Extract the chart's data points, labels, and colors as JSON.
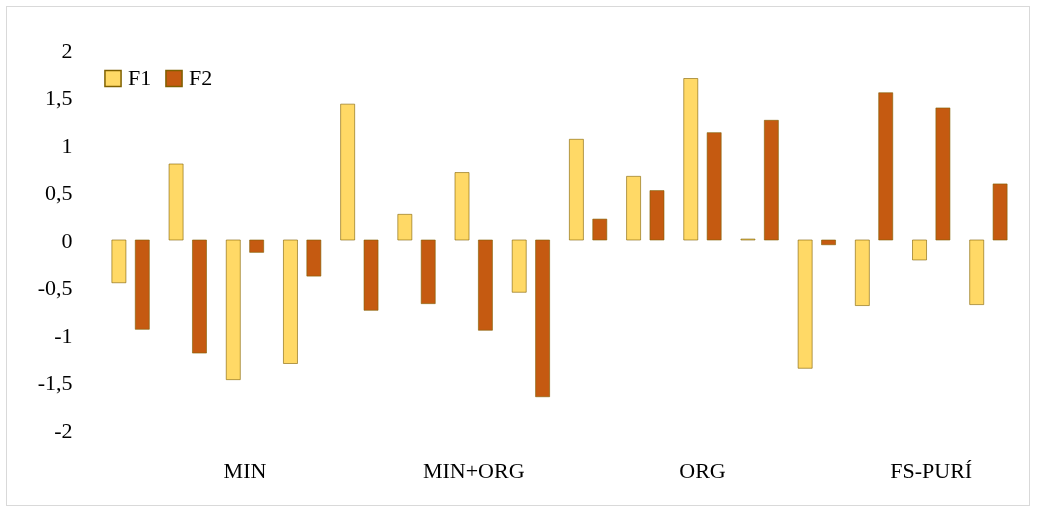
{
  "chart_data": {
    "type": "bar",
    "categories": [
      null,
      null,
      "MIN",
      null,
      null,
      null,
      "MIN+ORG",
      null,
      null,
      null,
      "ORG",
      null,
      null,
      null,
      "FS-PURÍ",
      null
    ],
    "series": [
      {
        "name": "F1",
        "color": "#ffd966",
        "values": [
          -0.45,
          0.8,
          -1.47,
          -1.3,
          1.43,
          0.27,
          0.71,
          -0.55,
          1.06,
          0.67,
          1.7,
          0.01,
          -1.35,
          -0.69,
          -0.21,
          -0.68
        ]
      },
      {
        "name": "F2",
        "color": "#c55a11",
        "values": [
          -0.94,
          -1.19,
          -0.13,
          -0.38,
          -0.74,
          -0.67,
          -0.95,
          -1.65,
          0.22,
          0.52,
          1.13,
          1.26,
          -0.05,
          1.55,
          1.39,
          0.59
        ]
      }
    ],
    "ylim": [
      -2,
      2
    ],
    "yticks": [
      {
        "value": -2,
        "label": "-2"
      },
      {
        "value": -1.5,
        "label": "-1,5"
      },
      {
        "value": -1,
        "label": "-1"
      },
      {
        "value": -0.5,
        "label": "-0,5"
      },
      {
        "value": 0,
        "label": "0"
      },
      {
        "value": 0.5,
        "label": "0,5"
      },
      {
        "value": 1,
        "label": "1"
      },
      {
        "value": 1.5,
        "label": "1,5"
      },
      {
        "value": 2,
        "label": "2"
      }
    ],
    "grid": false,
    "legend": "top"
  }
}
